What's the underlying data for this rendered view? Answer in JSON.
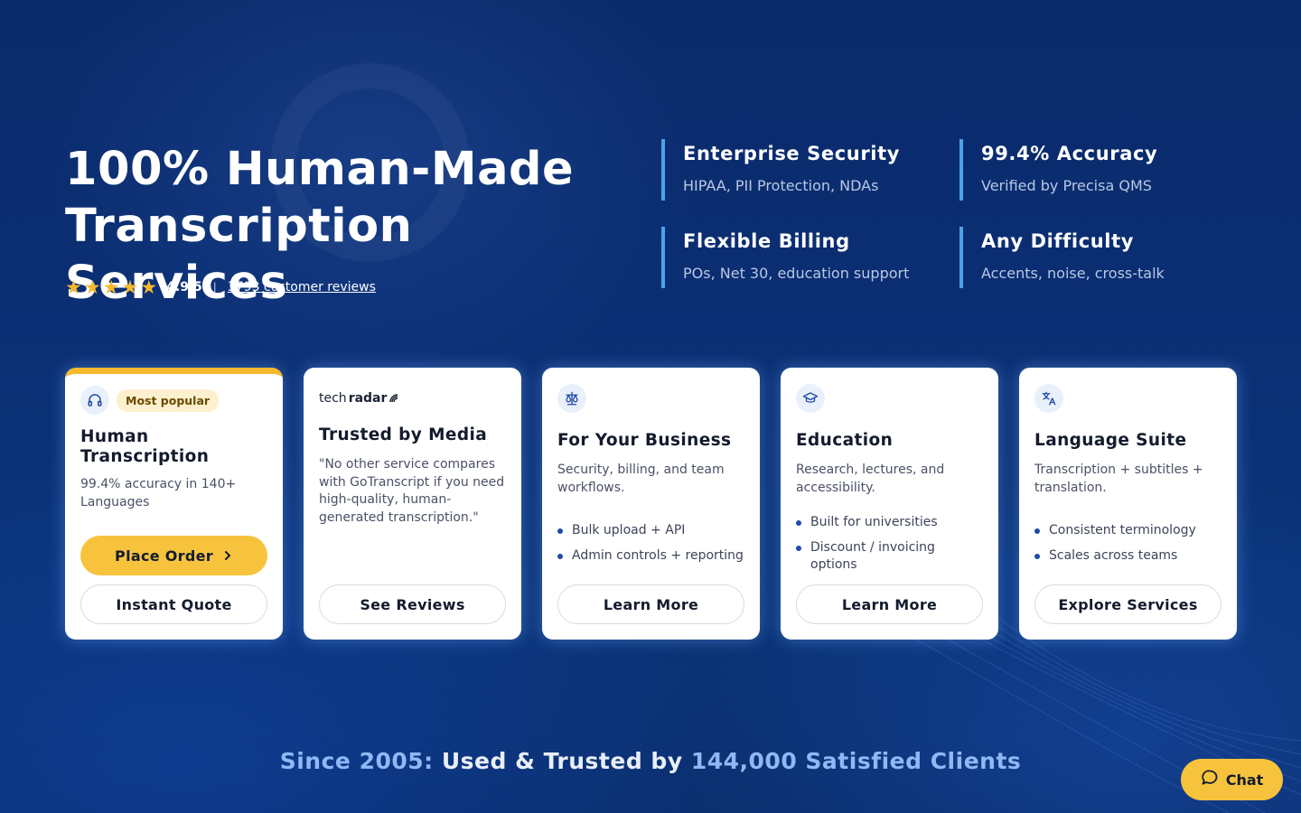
{
  "hero": {
    "title_line1": "100% Human-Made",
    "title_line2": "Transcription Services",
    "rating": {
      "stars": 5,
      "score": "4.9/5",
      "separator": "|",
      "reviews_link": "3793 customer reviews"
    }
  },
  "features": [
    {
      "title": "Enterprise Security",
      "subtitle": "HIPAA, PII Protection, NDAs"
    },
    {
      "title": "99.4% Accuracy",
      "subtitle": "Verified by Precisa QMS"
    },
    {
      "title": "Flexible Billing",
      "subtitle": "POs, Net 30, education support"
    },
    {
      "title": "Any Difficulty",
      "subtitle": "Accents, noise, cross-talk"
    }
  ],
  "cards": [
    {
      "icon": "headphones-icon",
      "badge": "Most popular",
      "title": "Human Transcription",
      "desc": "99.4% accuracy in 140+ Languages",
      "primary_button": "Place Order",
      "secondary_button": "Instant Quote"
    },
    {
      "logo_text_a": "tech",
      "logo_text_b": "radar",
      "title": "Trusted by Media",
      "desc": "\"No other service compares with GoTranscript if you need high-quality, human-generated transcription.\"",
      "secondary_button": "See Reviews"
    },
    {
      "icon": "scale-icon",
      "title": "For Your Business",
      "desc": "Security, billing, and team workflows.",
      "bullets": [
        "Bulk upload + API",
        "Admin controls + reporting"
      ],
      "secondary_button": "Learn More"
    },
    {
      "icon": "graduation-cap-icon",
      "title": "Education",
      "desc": "Research, lectures, and accessibility.",
      "bullets": [
        "Built for universities",
        "Discount / invoicing options"
      ],
      "secondary_button": "Learn More"
    },
    {
      "icon": "translate-icon",
      "title": "Language Suite",
      "desc": "Transcription + subtitles + translation.",
      "bullets": [
        "Consistent terminology",
        "Scales across teams"
      ],
      "secondary_button": "Explore Services"
    }
  ],
  "tagline": {
    "part1": "Since 2005:",
    "part2": "Used & Trusted by",
    "part3": "144,000 Satisfied Clients"
  },
  "chat": {
    "label": "Chat"
  },
  "colors": {
    "accent_yellow": "#f7c33c",
    "feature_bar": "#4aa3e8",
    "bg_navy": "#0b2f74"
  }
}
